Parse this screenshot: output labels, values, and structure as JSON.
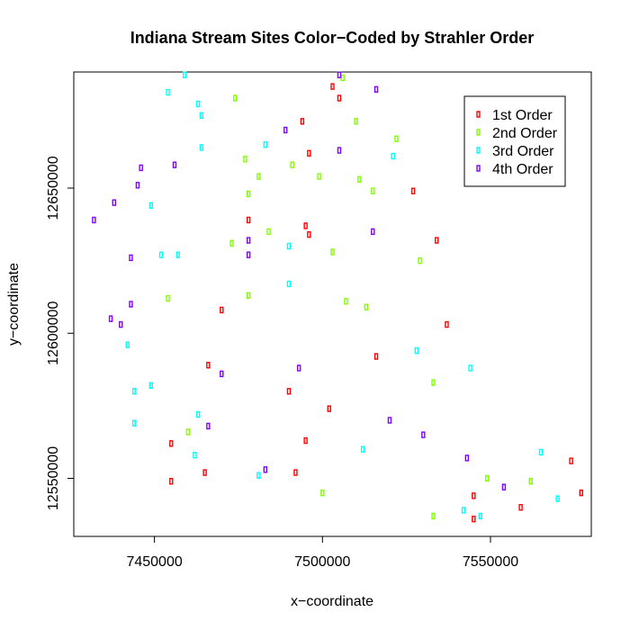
{
  "chart_data": {
    "type": "scatter",
    "title": "Indiana Stream Sites Color−Coded by Strahler Order",
    "xlabel": "x−coordinate",
    "ylabel": "y−coordinate",
    "xlim": [
      7426000,
      7580000
    ],
    "ylim": [
      12530000,
      12690000
    ],
    "x_ticks": [
      7450000,
      7500000,
      7550000
    ],
    "x_tick_labels": [
      "7450000",
      "7500000",
      "7550000"
    ],
    "y_ticks": [
      12550000,
      12600000,
      12650000
    ],
    "y_tick_labels": [
      "12550000",
      "12600000",
      "12650000"
    ],
    "legend": {
      "position": "top-right"
    },
    "series": [
      {
        "name": "1st Order",
        "color": "#FF0000",
        "points": [
          [
            7503000,
            12685000
          ],
          [
            7505000,
            12681000
          ],
          [
            7494000,
            12673000
          ],
          [
            7496000,
            12662000
          ],
          [
            7527000,
            12649000
          ],
          [
            7478000,
            12639000
          ],
          [
            7495000,
            12637000
          ],
          [
            7496000,
            12634000
          ],
          [
            7534000,
            12632000
          ],
          [
            7470000,
            12608000
          ],
          [
            7537000,
            12603000
          ],
          [
            7516000,
            12592000
          ],
          [
            7466000,
            12589000
          ],
          [
            7490000,
            12580000
          ],
          [
            7502000,
            12574000
          ],
          [
            7455000,
            12562000
          ],
          [
            7495000,
            12563000
          ],
          [
            7465000,
            12552000
          ],
          [
            7492000,
            12552000
          ],
          [
            7455000,
            12549000
          ],
          [
            7574000,
            12556000
          ],
          [
            7577000,
            12545000
          ],
          [
            7545000,
            12544000
          ],
          [
            7559000,
            12540000
          ],
          [
            7545000,
            12536000
          ]
        ]
      },
      {
        "name": "2nd Order",
        "color": "#80FF00",
        "points": [
          [
            7474000,
            12681000
          ],
          [
            7506000,
            12688000
          ],
          [
            7510000,
            12673000
          ],
          [
            7522000,
            12667000
          ],
          [
            7477000,
            12660000
          ],
          [
            7491000,
            12658000
          ],
          [
            7481000,
            12654000
          ],
          [
            7499000,
            12654000
          ],
          [
            7511000,
            12653000
          ],
          [
            7515000,
            12649000
          ],
          [
            7478000,
            12648000
          ],
          [
            7484000,
            12635000
          ],
          [
            7473000,
            12631000
          ],
          [
            7503000,
            12628000
          ],
          [
            7529000,
            12625000
          ],
          [
            7454000,
            12612000
          ],
          [
            7478000,
            12613000
          ],
          [
            7507000,
            12611000
          ],
          [
            7513000,
            12609000
          ],
          [
            7533000,
            12583000
          ],
          [
            7460000,
            12566000
          ],
          [
            7549000,
            12550000
          ],
          [
            7562000,
            12549000
          ],
          [
            7500000,
            12545000
          ],
          [
            7533000,
            12537000
          ]
        ]
      },
      {
        "name": "3rd Order",
        "color": "#00FFFF",
        "points": [
          [
            7459000,
            12689000
          ],
          [
            7454000,
            12683000
          ],
          [
            7463000,
            12679000
          ],
          [
            7464000,
            12675000
          ],
          [
            7521000,
            12661000
          ],
          [
            7464000,
            12664000
          ],
          [
            7483000,
            12665000
          ],
          [
            7449000,
            12644000
          ],
          [
            7452000,
            12627000
          ],
          [
            7457000,
            12627000
          ],
          [
            7490000,
            12630000
          ],
          [
            7490000,
            12617000
          ],
          [
            7442000,
            12596000
          ],
          [
            7528000,
            12594000
          ],
          [
            7544000,
            12588000
          ],
          [
            7449000,
            12582000
          ],
          [
            7444000,
            12580000
          ],
          [
            7463000,
            12572000
          ],
          [
            7444000,
            12569000
          ],
          [
            7512000,
            12560000
          ],
          [
            7565000,
            12559000
          ],
          [
            7462000,
            12558000
          ],
          [
            7481000,
            12551000
          ],
          [
            7570000,
            12543000
          ],
          [
            7542000,
            12539000
          ],
          [
            7547000,
            12537000
          ]
        ]
      },
      {
        "name": "4th Order",
        "color": "#8000FF",
        "points": [
          [
            7505000,
            12689000
          ],
          [
            7516000,
            12684000
          ],
          [
            7489000,
            12670000
          ],
          [
            7505000,
            12663000
          ],
          [
            7456000,
            12658000
          ],
          [
            7446000,
            12657000
          ],
          [
            7445000,
            12651000
          ],
          [
            7438000,
            12645000
          ],
          [
            7432000,
            12639000
          ],
          [
            7515000,
            12635000
          ],
          [
            7478000,
            12632000
          ],
          [
            7478000,
            12627000
          ],
          [
            7443000,
            12626000
          ],
          [
            7443000,
            12610000
          ],
          [
            7437000,
            12605000
          ],
          [
            7440000,
            12603000
          ],
          [
            7493000,
            12588000
          ],
          [
            7470000,
            12586000
          ],
          [
            7520000,
            12570000
          ],
          [
            7466000,
            12568000
          ],
          [
            7530000,
            12565000
          ],
          [
            7543000,
            12557000
          ],
          [
            7483000,
            12553000
          ],
          [
            7554000,
            12547000
          ]
        ]
      }
    ]
  }
}
